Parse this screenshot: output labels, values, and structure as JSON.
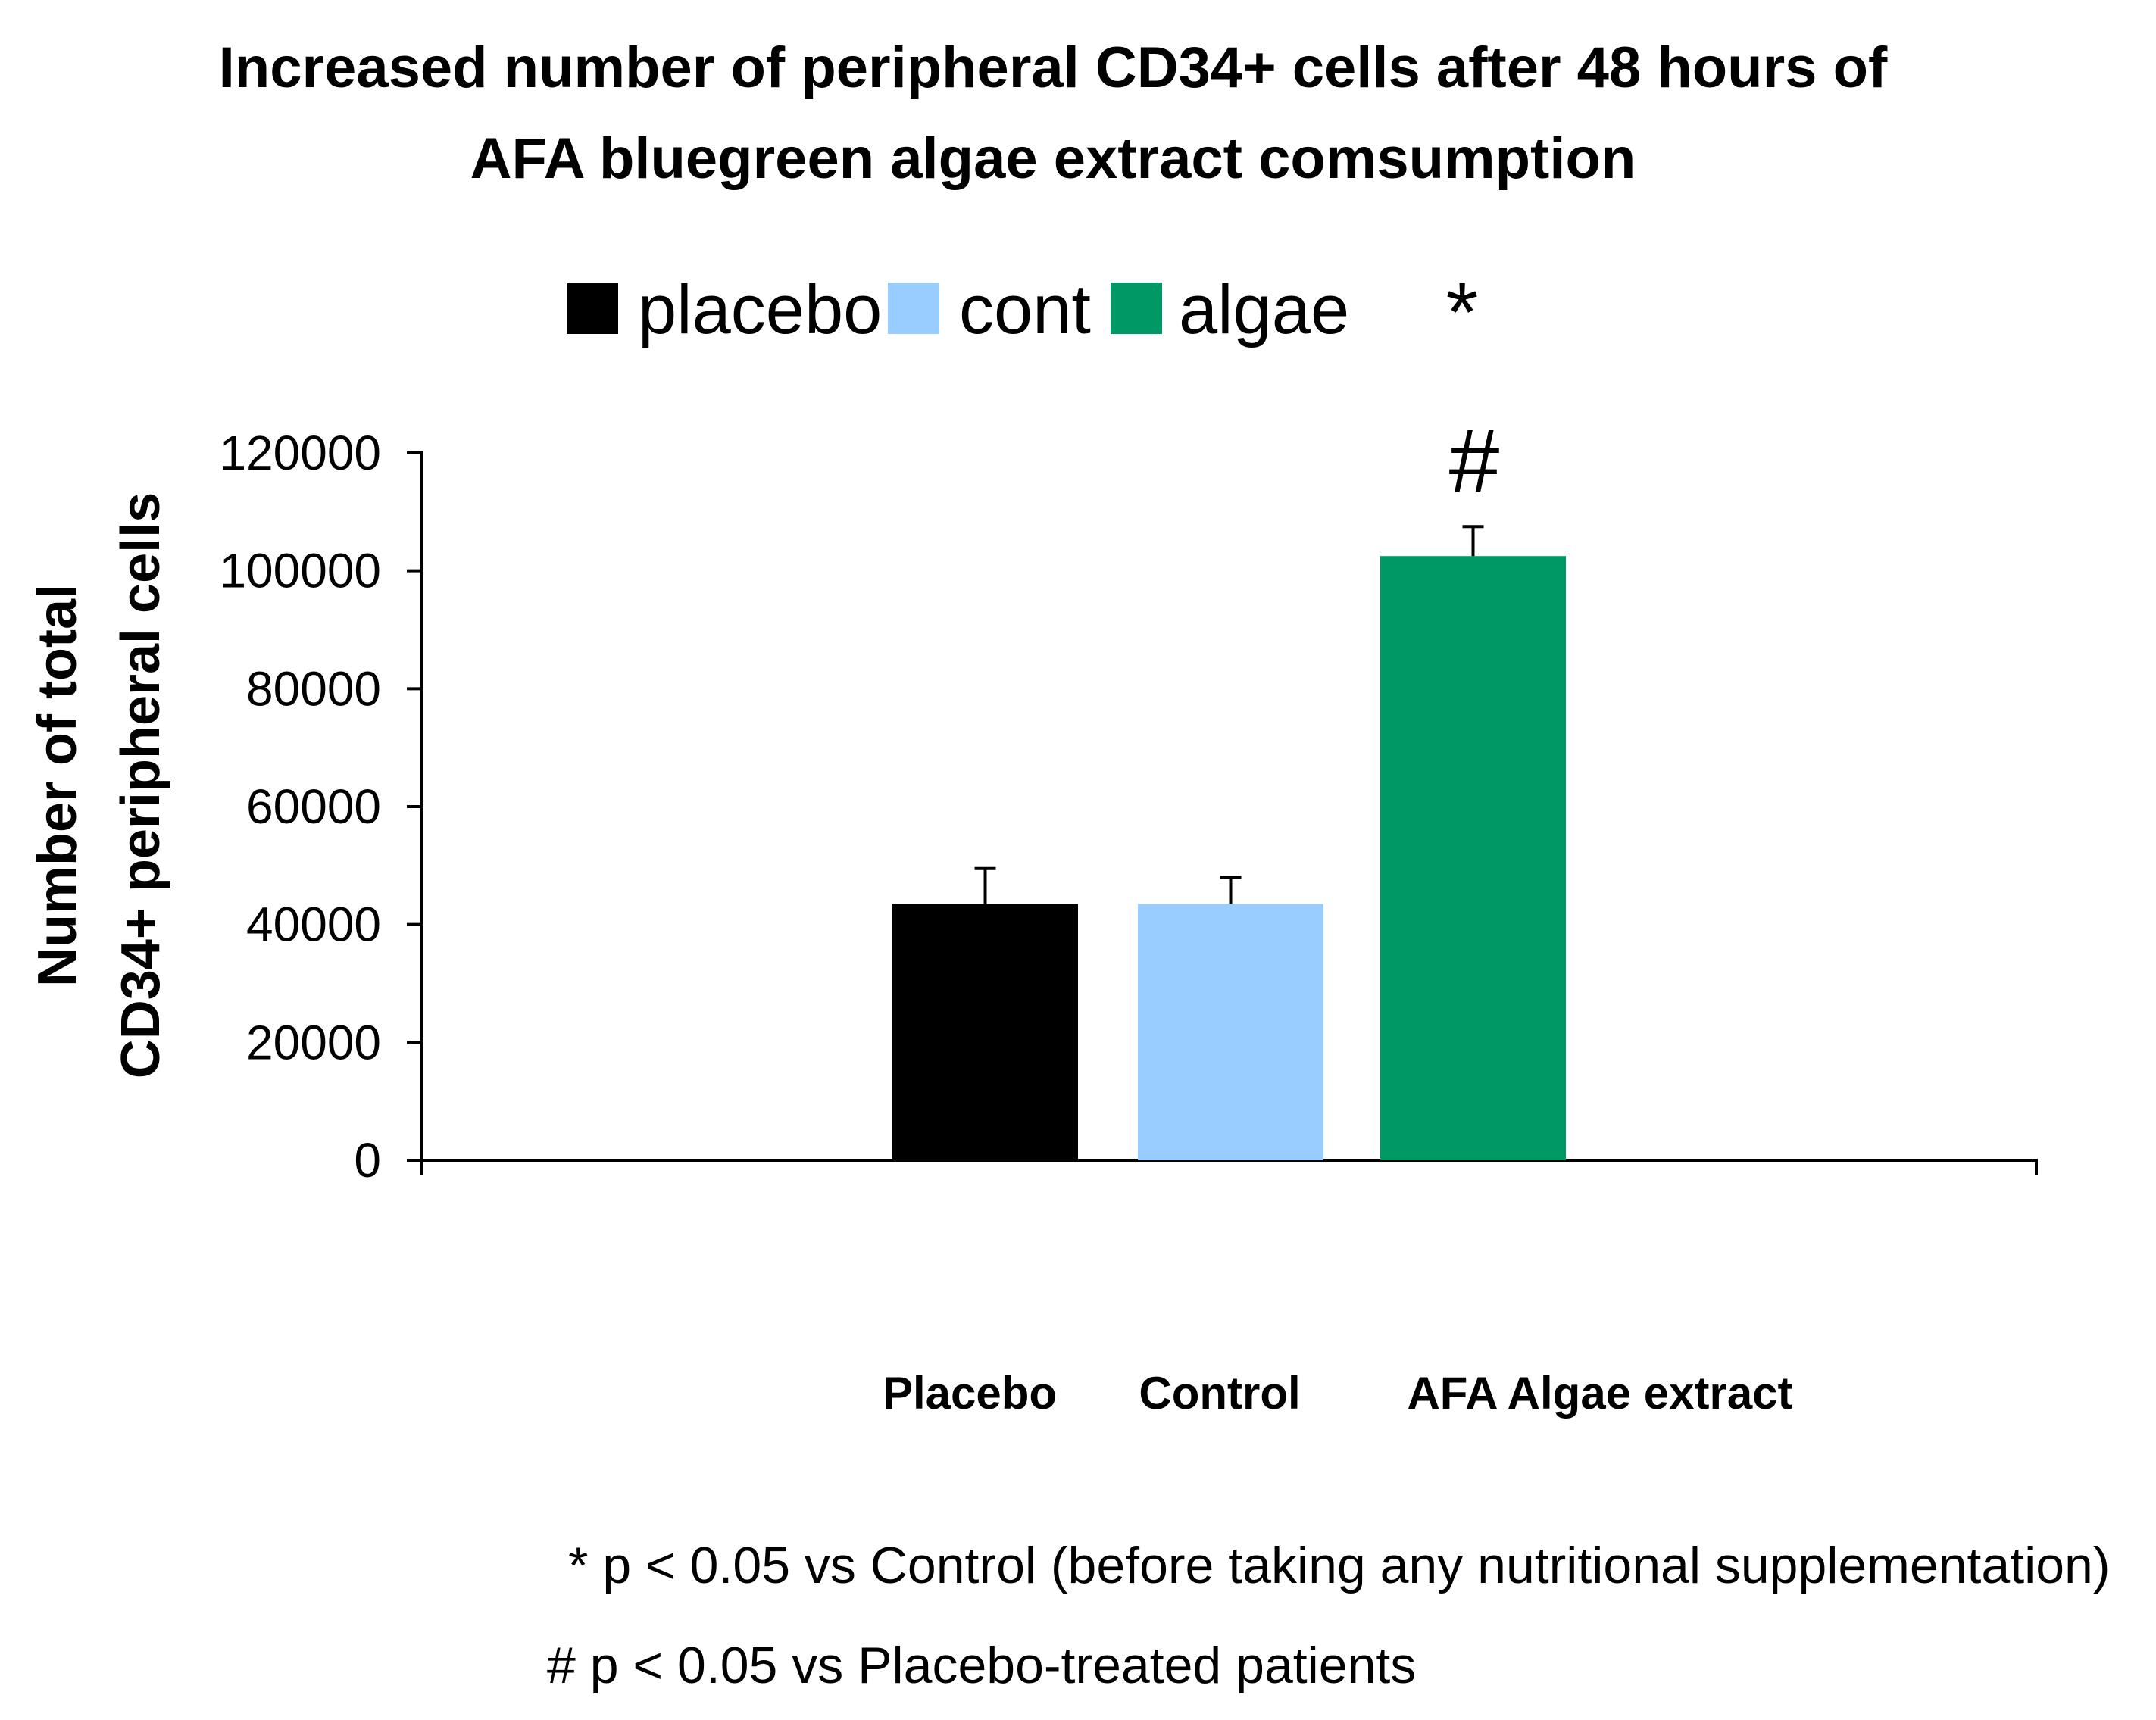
{
  "chart_data": {
    "type": "bar",
    "title": "Increased number of peripheral CD34+ cells after 48 hours of AFA bluegreen algae extract comsumption",
    "title_lines": [
      "Increased number of peripheral CD34+ cells after 48 hours of",
      "AFA bluegreen algae extract comsumption"
    ],
    "categories": [
      "Placebo",
      "Control",
      "AFA Algae extract"
    ],
    "values": [
      43500,
      43500,
      102500
    ],
    "error_upper": [
      49500,
      48000,
      107500
    ],
    "colors": [
      "#000000",
      "#99ccff",
      "#009966"
    ],
    "legend": [
      {
        "label": "placebo",
        "color": "#000000"
      },
      {
        "label": "cont",
        "color": "#99ccff"
      },
      {
        "label": "algae",
        "color": "#009966"
      }
    ],
    "ylabel_lines": [
      "Number of total",
      "CD34+ peripheral cells"
    ],
    "ylabel": "Number of total CD34+ peripheral cells",
    "xlabel": "",
    "ylim": [
      0,
      120000
    ],
    "yticks": [
      0,
      20000,
      40000,
      60000,
      80000,
      100000,
      120000
    ],
    "ytick_labels": [
      "0",
      "20000",
      "40000",
      "60000",
      "80000",
      "100000",
      "120000"
    ],
    "significance_markers": [
      "*",
      "#"
    ],
    "footnotes": [
      "* p < 0.05 vs Control (before taking any nutritional supplementation)",
      "#  p < 0.05 vs Placebo-treated patients"
    ]
  }
}
